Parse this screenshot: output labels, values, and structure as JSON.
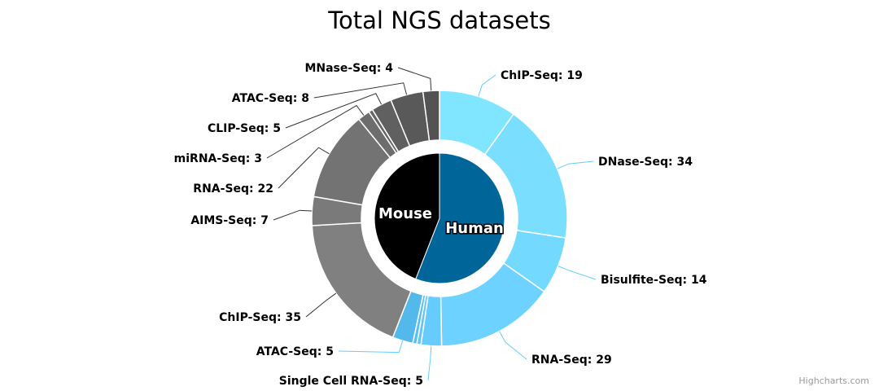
{
  "chart_data": {
    "type": "pie",
    "title": "Total NGS datasets",
    "credits": "Highcharts.com",
    "inner": [
      {
        "name": "Human",
        "value": 108,
        "color": "#006699"
      },
      {
        "name": "Mouse",
        "value": 85,
        "color": "#000000"
      }
    ],
    "outer": [
      {
        "group": "Human",
        "name": "ChIP-Seq",
        "value": 19,
        "color": "#80e5ff"
      },
      {
        "group": "Human",
        "name": "DNase-Seq",
        "value": 34,
        "color": "#7adfff"
      },
      {
        "group": "Human",
        "name": "Bisulfite-Seq",
        "value": 14,
        "color": "#73d9ff"
      },
      {
        "group": "Human",
        "name": "RNA-Seq",
        "value": 29,
        "color": "#6dd2ff"
      },
      {
        "group": "Human",
        "name": "Single Cell RNA-Seq",
        "value": 5,
        "color": "#66ccff"
      },
      {
        "group": "Human",
        "name": "",
        "value": 1,
        "color": "#60c5f7"
      },
      {
        "group": "Human",
        "name": "",
        "value": 1,
        "color": "#59bff0"
      },
      {
        "group": "Human",
        "name": "ATAC-Seq",
        "value": 5,
        "color": "#53b8ea"
      },
      {
        "group": "Mouse",
        "name": "ChIP-Seq",
        "value": 35,
        "color": "#808080"
      },
      {
        "group": "Mouse",
        "name": "AIMS-Seq",
        "value": 7,
        "color": "#7a7a7a"
      },
      {
        "group": "Mouse",
        "name": "RNA-Seq",
        "value": 22,
        "color": "#737373"
      },
      {
        "group": "Mouse",
        "name": "miRNA-Seq",
        "value": 3,
        "color": "#6d6d6d"
      },
      {
        "group": "Mouse",
        "name": "",
        "value": 1,
        "color": "#666666"
      },
      {
        "group": "Mouse",
        "name": "CLIP-Seq",
        "value": 5,
        "color": "#606060"
      },
      {
        "group": "Mouse",
        "name": "ATAC-Seq",
        "value": 8,
        "color": "#595959"
      },
      {
        "group": "Mouse",
        "name": "MNase-Seq",
        "value": 4,
        "color": "#535353"
      }
    ]
  }
}
